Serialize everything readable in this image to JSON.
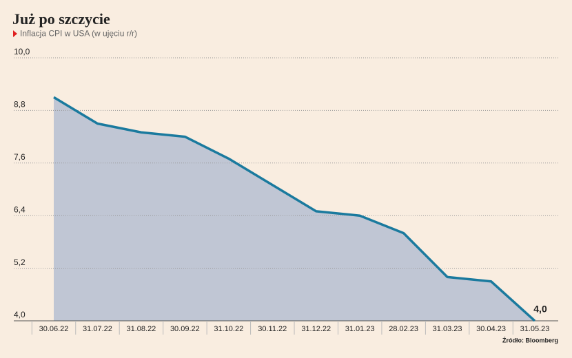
{
  "chart_data": {
    "type": "area",
    "title": "Już po szczycie",
    "subtitle": "Inflacja CPI w USA (w ujęciu r/r)",
    "source": "Źródło: Bloomberg",
    "categories": [
      "30.06.22",
      "31.07.22",
      "31.08.22",
      "30.09.22",
      "31.10.22",
      "30.11.22",
      "31.12.22",
      "31.01.23",
      "28.02.23",
      "31.03.23",
      "30.04.23",
      "31.05.23"
    ],
    "values": [
      9.1,
      8.5,
      8.3,
      8.2,
      7.7,
      7.1,
      6.5,
      6.4,
      6.0,
      5.0,
      4.9,
      4.0
    ],
    "value_labels": [
      null,
      null,
      null,
      null,
      null,
      null,
      null,
      null,
      null,
      null,
      null,
      "4,0"
    ],
    "color": "#1a7a9e",
    "fill": "#c0c6d4",
    "ylim": [
      4.0,
      10.0
    ],
    "yticks": [
      {
        "value": 4.0,
        "label": "4,0"
      },
      {
        "value": 5.2,
        "label": "5,2"
      },
      {
        "value": 6.4,
        "label": "6,4"
      },
      {
        "value": 7.6,
        "label": "7,6"
      },
      {
        "value": 8.8,
        "label": "8,8"
      },
      {
        "value": 10.0,
        "label": "10,0"
      }
    ],
    "grid": true
  }
}
